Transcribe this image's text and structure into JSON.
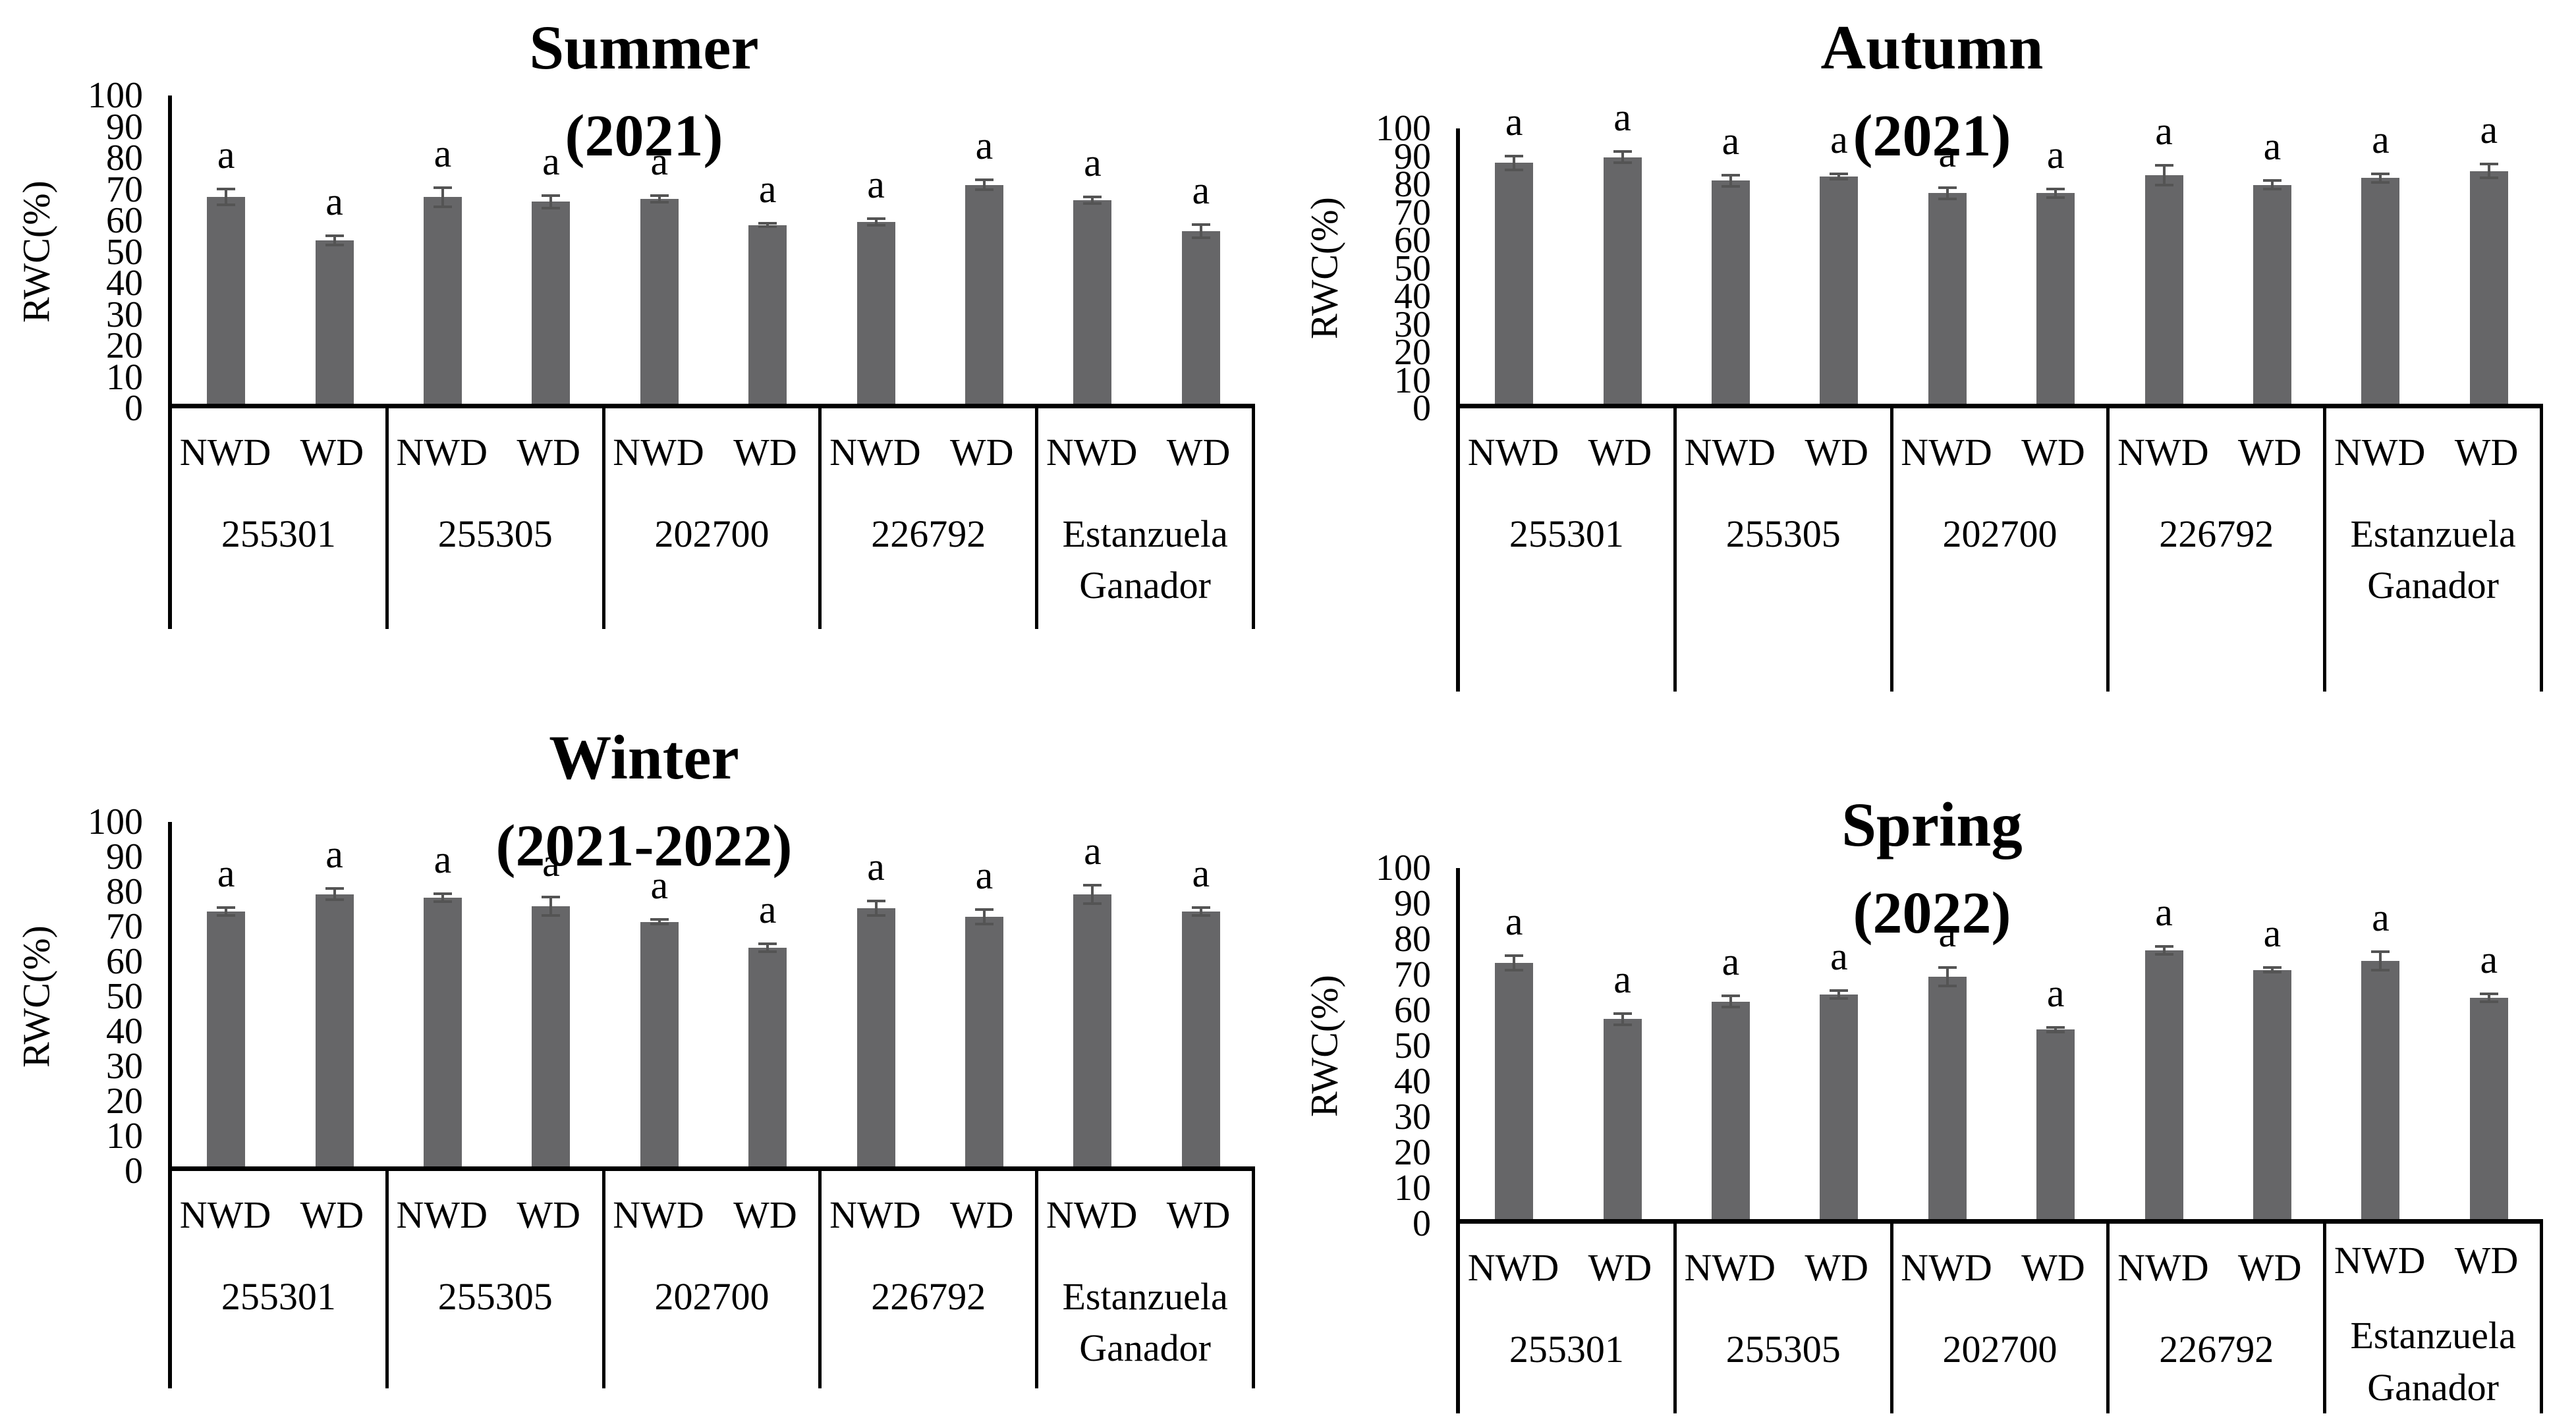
{
  "figure": {
    "yticks": [
      100,
      90,
      80,
      70,
      60,
      50,
      40,
      30,
      20,
      10,
      0
    ],
    "colors": {
      "bar": "#666668",
      "error_bar": "#545454",
      "axis": "#000000"
    }
  },
  "chart_data": [
    {
      "type": "bar",
      "title": "Summer",
      "subtitle": "(2021)",
      "ylabel": "RWC(%)",
      "ylim": [
        0,
        100
      ],
      "ytick_step": 10,
      "grid": false,
      "legend": "none",
      "sig_label": "a",
      "treatments": [
        "NWD",
        "WD"
      ],
      "categories": [
        "255301",
        "255305",
        "202700",
        "226792",
        "Estanzuela Ganador"
      ],
      "values": [
        [
          67,
          53
        ],
        [
          67,
          65.5
        ],
        [
          66.5,
          58
        ],
        [
          59,
          71
        ],
        [
          66,
          56
        ]
      ],
      "errors": [
        [
          3,
          2
        ],
        [
          3.5,
          2.5
        ],
        [
          1.5,
          1
        ],
        [
          1.5,
          2
        ],
        [
          1.5,
          2.5
        ]
      ]
    },
    {
      "type": "bar",
      "title": "Autumn",
      "subtitle": "(2021)",
      "ylabel": "RWC(%)",
      "ylim": [
        0,
        100
      ],
      "ytick_step": 10,
      "grid": false,
      "legend": "none",
      "sig_label": "a",
      "treatments": [
        "NWD",
        "WD"
      ],
      "categories": [
        "255301",
        "255305",
        "202700",
        "226792",
        "Estanzuela Ganador"
      ],
      "values": [
        [
          87.5,
          89.5
        ],
        [
          81,
          82.5
        ],
        [
          76.5,
          76.5
        ],
        [
          83,
          79.5
        ],
        [
          82,
          84.5
        ]
      ],
      "errors": [
        [
          3,
          2.5
        ],
        [
          2.5,
          1.5
        ],
        [
          2.5,
          2
        ],
        [
          4,
          2
        ],
        [
          2,
          3
        ]
      ]
    },
    {
      "type": "bar",
      "title": "Winter",
      "subtitle": "(2021-2022)",
      "ylabel": "RWC(%)",
      "ylim": [
        0,
        100
      ],
      "ytick_step": 10,
      "grid": false,
      "legend": "none",
      "sig_label": "a",
      "treatments": [
        "NWD",
        "WD"
      ],
      "categories": [
        "255301",
        "255305",
        "202700",
        "226792",
        "Estanzuela Ganador"
      ],
      "values": [
        [
          74,
          79
        ],
        [
          78,
          75.5
        ],
        [
          71,
          63.5
        ],
        [
          75,
          72.5
        ],
        [
          79,
          74
        ]
      ],
      "errors": [
        [
          1.5,
          2
        ],
        [
          1.5,
          3
        ],
        [
          1,
          1.5
        ],
        [
          2.5,
          2.5
        ],
        [
          3,
          1.5
        ]
      ]
    },
    {
      "type": "bar",
      "title": "Spring",
      "subtitle": "(2022)",
      "ylabel": "RWC(%)",
      "ylim": [
        0,
        100
      ],
      "ytick_step": 10,
      "grid": false,
      "legend": "none",
      "sig_label": "a",
      "treatments": [
        "NWD",
        "WD"
      ],
      "categories": [
        "255301",
        "255305",
        "202700",
        "226792",
        "Estanzuela Ganador"
      ],
      "values": [
        [
          73,
          57
        ],
        [
          62,
          64
        ],
        [
          69,
          54
        ],
        [
          76.5,
          71
        ],
        [
          73.5,
          63
        ]
      ],
      "errors": [
        [
          2.5,
          2
        ],
        [
          2,
          1.5
        ],
        [
          3,
          1
        ],
        [
          1.5,
          1
        ],
        [
          3,
          1.5
        ]
      ]
    }
  ]
}
